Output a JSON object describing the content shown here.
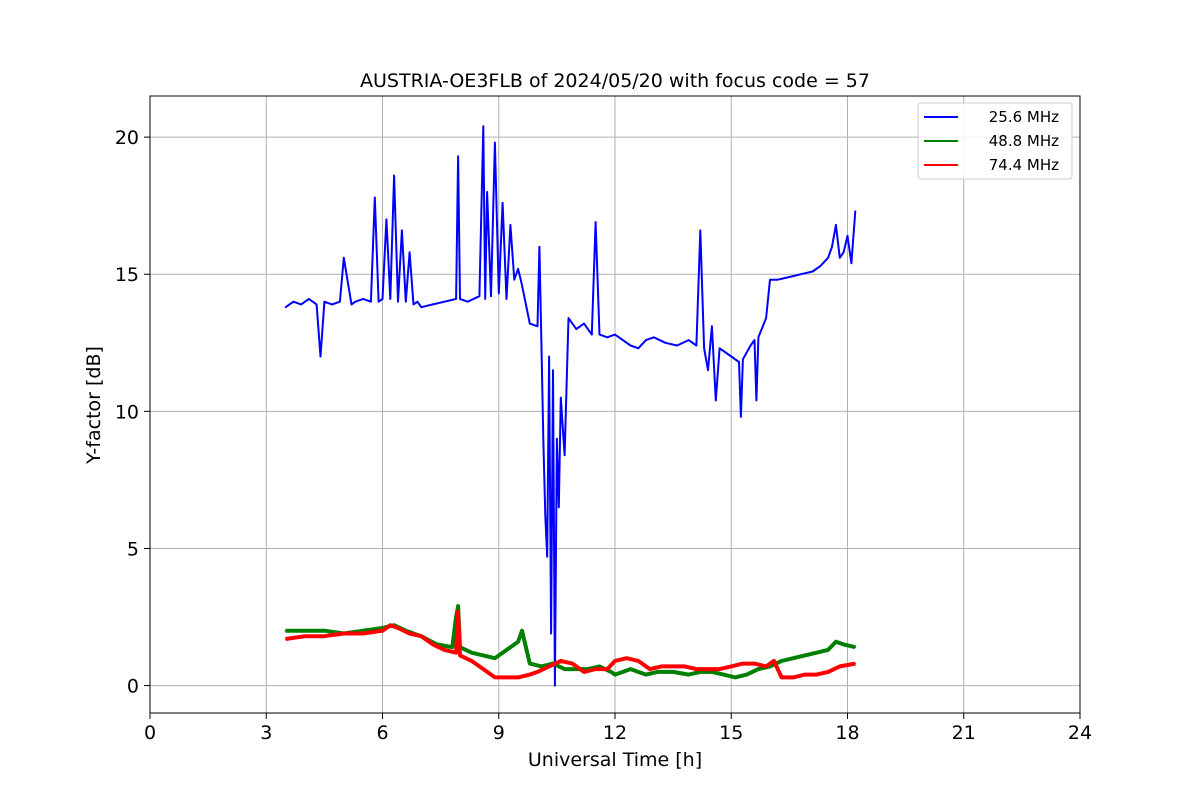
{
  "chart_data": {
    "type": "line",
    "title": "AUSTRIA-OE3FLB of 2024/05/20 with focus code = 57",
    "xlabel": "Universal Time [h]",
    "ylabel": "Y-factor [dB]",
    "xlim": [
      0,
      24
    ],
    "ylim": [
      -1,
      21.5
    ],
    "xticks": [
      0,
      3,
      6,
      9,
      12,
      15,
      18,
      21,
      24
    ],
    "yticks": [
      0,
      5,
      10,
      15,
      20
    ],
    "grid": true,
    "legend_position": "top-right",
    "series": [
      {
        "name": "25.6 MHz",
        "color": "#0000ff",
        "x": [
          3.5,
          3.7,
          3.9,
          4.1,
          4.3,
          4.4,
          4.5,
          4.7,
          4.9,
          5.0,
          5.2,
          5.3,
          5.5,
          5.7,
          5.8,
          5.9,
          6.0,
          6.1,
          6.2,
          6.3,
          6.4,
          6.5,
          6.6,
          6.7,
          6.8,
          6.9,
          7.0,
          7.3,
          7.6,
          7.9,
          7.95,
          8.0,
          8.2,
          8.5,
          8.6,
          8.65,
          8.7,
          8.8,
          8.9,
          9.0,
          9.1,
          9.2,
          9.3,
          9.4,
          9.5,
          9.6,
          9.8,
          10.0,
          10.05,
          10.1,
          10.15,
          10.2,
          10.25,
          10.3,
          10.35,
          10.4,
          10.45,
          10.5,
          10.55,
          10.6,
          10.7,
          10.8,
          11.0,
          11.2,
          11.4,
          11.5,
          11.6,
          11.8,
          12.0,
          12.2,
          12.4,
          12.6,
          12.8,
          13.0,
          13.3,
          13.6,
          13.9,
          14.1,
          14.2,
          14.3,
          14.4,
          14.5,
          14.6,
          14.7,
          14.8,
          15.0,
          15.2,
          15.25,
          15.3,
          15.5,
          15.6,
          15.65,
          15.7,
          15.9,
          16.0,
          16.2,
          16.5,
          16.8,
          17.1,
          17.3,
          17.5,
          17.6,
          17.7,
          17.8,
          17.9,
          18.0,
          18.1,
          18.2
        ],
        "values": [
          13.8,
          14.0,
          13.9,
          14.1,
          13.9,
          12.0,
          14.0,
          13.9,
          14.0,
          15.6,
          13.9,
          14.0,
          14.1,
          14.0,
          17.8,
          14.0,
          14.1,
          17.0,
          14.1,
          18.6,
          14.0,
          16.6,
          14.0,
          15.8,
          13.9,
          14.0,
          13.8,
          13.9,
          14.0,
          14.1,
          19.3,
          14.1,
          14.0,
          14.2,
          20.4,
          14.1,
          18.0,
          14.2,
          19.8,
          14.3,
          17.6,
          14.1,
          16.8,
          14.8,
          15.2,
          14.6,
          13.2,
          13.1,
          16.0,
          12.5,
          9.0,
          6.2,
          4.7,
          12.0,
          1.9,
          11.5,
          0.0,
          9.0,
          6.5,
          10.5,
          8.4,
          13.4,
          13.0,
          13.2,
          12.8,
          16.9,
          12.8,
          12.7,
          12.8,
          12.6,
          12.4,
          12.3,
          12.6,
          12.7,
          12.5,
          12.4,
          12.6,
          12.4,
          16.6,
          12.3,
          11.5,
          13.1,
          10.4,
          12.3,
          12.2,
          12.0,
          11.8,
          9.8,
          11.9,
          12.4,
          12.6,
          10.4,
          12.7,
          13.4,
          14.8,
          14.8,
          14.9,
          15.0,
          15.1,
          15.3,
          15.6,
          16.0,
          16.8,
          15.6,
          15.8,
          16.4,
          15.4,
          17.3
        ]
      },
      {
        "name": "48.8 MHz",
        "color": "#008000",
        "x": [
          3.5,
          4.0,
          4.5,
          5.0,
          5.5,
          6.0,
          6.3,
          6.6,
          7.0,
          7.4,
          7.8,
          7.9,
          7.95,
          8.0,
          8.3,
          8.6,
          8.9,
          9.1,
          9.3,
          9.5,
          9.6,
          9.8,
          10.1,
          10.4,
          10.7,
          11.0,
          11.3,
          11.6,
          11.9,
          12.0,
          12.4,
          12.8,
          13.1,
          13.5,
          13.9,
          14.2,
          14.5,
          14.8,
          15.1,
          15.4,
          15.7,
          16.0,
          16.3,
          16.6,
          16.9,
          17.2,
          17.5,
          17.7,
          17.9,
          18.2
        ],
        "values": [
          2.0,
          2.0,
          2.0,
          1.9,
          2.0,
          2.1,
          2.2,
          2.0,
          1.8,
          1.5,
          1.4,
          2.5,
          2.9,
          1.4,
          1.2,
          1.1,
          1.0,
          1.2,
          1.4,
          1.6,
          2.0,
          0.8,
          0.7,
          0.8,
          0.6,
          0.6,
          0.6,
          0.7,
          0.5,
          0.4,
          0.6,
          0.4,
          0.5,
          0.5,
          0.4,
          0.5,
          0.5,
          0.4,
          0.3,
          0.4,
          0.6,
          0.7,
          0.9,
          1.0,
          1.1,
          1.2,
          1.3,
          1.6,
          1.5,
          1.4
        ]
      },
      {
        "name": "74.4 MHz",
        "color": "#ff0000",
        "x": [
          3.5,
          4.0,
          4.5,
          5.0,
          5.5,
          6.0,
          6.2,
          6.4,
          6.7,
          7.0,
          7.3,
          7.6,
          7.9,
          7.95,
          8.0,
          8.3,
          8.6,
          8.9,
          9.2,
          9.5,
          9.8,
          10.0,
          10.3,
          10.6,
          10.9,
          11.2,
          11.5,
          11.8,
          12.0,
          12.3,
          12.6,
          12.9,
          13.2,
          13.5,
          13.8,
          14.1,
          14.4,
          14.7,
          15.0,
          15.3,
          15.6,
          15.9,
          16.1,
          16.3,
          16.6,
          16.9,
          17.2,
          17.5,
          17.8,
          18.2
        ],
        "values": [
          1.7,
          1.8,
          1.8,
          1.9,
          1.9,
          2.0,
          2.2,
          2.1,
          1.9,
          1.8,
          1.5,
          1.3,
          1.2,
          2.7,
          1.1,
          0.9,
          0.6,
          0.3,
          0.3,
          0.3,
          0.4,
          0.5,
          0.7,
          0.9,
          0.8,
          0.5,
          0.6,
          0.6,
          0.9,
          1.0,
          0.9,
          0.6,
          0.7,
          0.7,
          0.7,
          0.6,
          0.6,
          0.6,
          0.7,
          0.8,
          0.8,
          0.7,
          0.9,
          0.3,
          0.3,
          0.4,
          0.4,
          0.5,
          0.7,
          0.8
        ]
      }
    ]
  }
}
